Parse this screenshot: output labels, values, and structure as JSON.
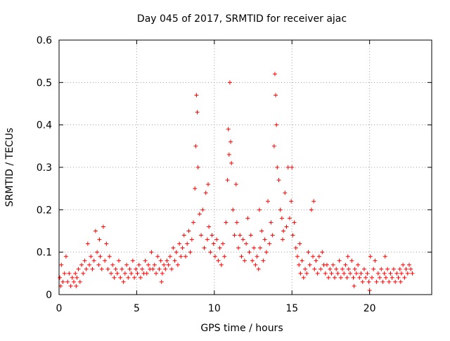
{
  "chart_data": {
    "type": "scatter",
    "title": "Day 045 of 2017, SRMTID for receiver ajac",
    "xlabel": "GPS time / hours",
    "ylabel": "SRMTID / TECUs",
    "xlim": [
      0,
      24
    ],
    "ylim": [
      0,
      0.6
    ],
    "x_ticks": [
      0,
      5,
      10,
      15,
      20
    ],
    "x_tick_labels": [
      "0",
      "5",
      "10",
      "15",
      "20"
    ],
    "y_ticks": [
      0,
      0.1,
      0.2,
      0.3,
      0.4,
      0.5,
      0.6
    ],
    "y_tick_labels": [
      "0",
      "0.1",
      "0.2",
      "0.3",
      "0.4",
      "0.5",
      "0.6"
    ],
    "grid": true,
    "marker": "+",
    "marker_color": "#ff0000",
    "series": [
      {
        "name": "SRMTID",
        "points": [
          [
            0.05,
            0.04
          ],
          [
            0.15,
            0.07
          ],
          [
            0.25,
            0.03
          ],
          [
            0.35,
            0.05
          ],
          [
            0.45,
            0.09
          ],
          [
            0.55,
            0.03
          ],
          [
            0.65,
            0.05
          ],
          [
            0.75,
            0.02
          ],
          [
            0.85,
            0.04
          ],
          [
            0.95,
            0.03
          ],
          [
            1.05,
            0.05
          ],
          [
            1.15,
            0.04
          ],
          [
            1.25,
            0.06
          ],
          [
            1.35,
            0.03
          ],
          [
            1.45,
            0.07
          ],
          [
            1.55,
            0.05
          ],
          [
            1.65,
            0.08
          ],
          [
            1.75,
            0.06
          ],
          [
            1.85,
            0.12
          ],
          [
            1.95,
            0.07
          ],
          [
            2.05,
            0.09
          ],
          [
            2.15,
            0.06
          ],
          [
            2.25,
            0.08
          ],
          [
            2.35,
            0.15
          ],
          [
            2.45,
            0.1
          ],
          [
            2.55,
            0.07
          ],
          [
            2.65,
            0.09
          ],
          [
            2.75,
            0.06
          ],
          [
            2.85,
            0.16
          ],
          [
            2.95,
            0.08
          ],
          [
            3.05,
            0.12
          ],
          [
            3.15,
            0.06
          ],
          [
            3.25,
            0.09
          ],
          [
            3.35,
            0.05
          ],
          [
            3.45,
            0.07
          ],
          [
            3.55,
            0.04
          ],
          [
            3.65,
            0.06
          ],
          [
            3.75,
            0.05
          ],
          [
            3.85,
            0.08
          ],
          [
            3.95,
            0.04
          ],
          [
            4.05,
            0.06
          ],
          [
            4.15,
            0.03
          ],
          [
            4.25,
            0.05
          ],
          [
            4.35,
            0.07
          ],
          [
            4.45,
            0.04
          ],
          [
            4.55,
            0.06
          ],
          [
            4.65,
            0.05
          ],
          [
            4.75,
            0.08
          ],
          [
            4.85,
            0.04
          ],
          [
            4.95,
            0.06
          ],
          [
            5.05,
            0.05
          ],
          [
            5.15,
            0.07
          ],
          [
            5.25,
            0.04
          ],
          [
            5.35,
            0.06
          ],
          [
            5.45,
            0.05
          ],
          [
            5.55,
            0.08
          ],
          [
            5.65,
            0.05
          ],
          [
            5.75,
            0.07
          ],
          [
            5.85,
            0.06
          ],
          [
            5.95,
            0.1
          ],
          [
            6.05,
            0.06
          ],
          [
            6.15,
            0.07
          ],
          [
            6.25,
            0.05
          ],
          [
            6.35,
            0.09
          ],
          [
            6.45,
            0.06
          ],
          [
            6.55,
            0.08
          ],
          [
            6.65,
            0.05
          ],
          [
            6.75,
            0.07
          ],
          [
            6.85,
            0.06
          ],
          [
            6.95,
            0.08
          ],
          [
            7.05,
            0.07
          ],
          [
            7.15,
            0.09
          ],
          [
            7.25,
            0.06
          ],
          [
            7.35,
            0.11
          ],
          [
            7.45,
            0.08
          ],
          [
            7.55,
            0.1
          ],
          [
            7.65,
            0.07
          ],
          [
            7.75,
            0.12
          ],
          [
            7.85,
            0.09
          ],
          [
            7.95,
            0.11
          ],
          [
            8.05,
            0.14
          ],
          [
            8.15,
            0.09
          ],
          [
            8.25,
            0.12
          ],
          [
            8.35,
            0.15
          ],
          [
            8.45,
            0.1
          ],
          [
            8.55,
            0.13
          ],
          [
            8.65,
            0.17
          ],
          [
            8.75,
            0.25
          ],
          [
            8.8,
            0.35
          ],
          [
            8.85,
            0.47
          ],
          [
            8.9,
            0.43
          ],
          [
            8.95,
            0.3
          ],
          [
            9.05,
            0.19
          ],
          [
            9.15,
            0.14
          ],
          [
            9.25,
            0.2
          ],
          [
            9.35,
            0.11
          ],
          [
            9.45,
            0.24
          ],
          [
            9.55,
            0.13
          ],
          [
            9.65,
            0.16
          ],
          [
            9.75,
            0.1
          ],
          [
            9.85,
            0.14
          ],
          [
            9.95,
            0.12
          ],
          [
            10.05,
            0.09
          ],
          [
            10.15,
            0.13
          ],
          [
            10.25,
            0.08
          ],
          [
            10.35,
            0.11
          ],
          [
            10.45,
            0.07
          ],
          [
            10.55,
            0.12
          ],
          [
            10.65,
            0.09
          ],
          [
            10.75,
            0.17
          ],
          [
            10.85,
            0.27
          ],
          [
            10.9,
            0.39
          ],
          [
            10.95,
            0.33
          ],
          [
            11.0,
            0.5
          ],
          [
            11.05,
            0.36
          ],
          [
            11.1,
            0.31
          ],
          [
            11.2,
            0.2
          ],
          [
            11.3,
            0.14
          ],
          [
            11.45,
            0.17
          ],
          [
            11.55,
            0.11
          ],
          [
            11.65,
            0.14
          ],
          [
            11.75,
            0.09
          ],
          [
            11.85,
            0.13
          ],
          [
            11.95,
            0.08
          ],
          [
            12.05,
            0.12
          ],
          [
            12.15,
            0.18
          ],
          [
            12.25,
            0.1
          ],
          [
            12.35,
            0.14
          ],
          [
            12.45,
            0.08
          ],
          [
            12.55,
            0.11
          ],
          [
            12.65,
            0.07
          ],
          [
            12.75,
            0.09
          ],
          [
            12.85,
            0.06
          ],
          [
            12.95,
            0.11
          ],
          [
            13.05,
            0.15
          ],
          [
            13.15,
            0.08
          ],
          [
            13.25,
            0.13
          ],
          [
            13.35,
            0.1
          ],
          [
            13.45,
            0.22
          ],
          [
            13.55,
            0.12
          ],
          [
            13.65,
            0.17
          ],
          [
            13.75,
            0.14
          ],
          [
            13.85,
            0.35
          ],
          [
            13.9,
            0.52
          ],
          [
            13.95,
            0.47
          ],
          [
            14.0,
            0.4
          ],
          [
            14.05,
            0.3
          ],
          [
            14.15,
            0.27
          ],
          [
            14.25,
            0.2
          ],
          [
            14.35,
            0.18
          ],
          [
            14.45,
            0.15
          ],
          [
            14.55,
            0.24
          ],
          [
            14.65,
            0.16
          ],
          [
            14.75,
            0.3
          ],
          [
            14.85,
            0.18
          ],
          [
            14.95,
            0.22
          ],
          [
            15.05,
            0.14
          ],
          [
            15.15,
            0.17
          ],
          [
            15.25,
            0.11
          ],
          [
            15.35,
            0.09
          ],
          [
            15.45,
            0.07
          ],
          [
            15.55,
            0.05
          ],
          [
            15.65,
            0.08
          ],
          [
            15.75,
            0.04
          ],
          [
            15.85,
            0.06
          ],
          [
            15.95,
            0.05
          ],
          [
            16.05,
            0.1
          ],
          [
            16.15,
            0.07
          ],
          [
            16.25,
            0.2
          ],
          [
            16.35,
            0.09
          ],
          [
            16.45,
            0.06
          ],
          [
            16.55,
            0.08
          ],
          [
            16.65,
            0.05
          ],
          [
            16.75,
            0.09
          ],
          [
            16.85,
            0.06
          ],
          [
            16.95,
            0.1
          ],
          [
            17.05,
            0.07
          ],
          [
            17.15,
            0.05
          ],
          [
            17.25,
            0.07
          ],
          [
            17.35,
            0.04
          ],
          [
            17.45,
            0.06
          ],
          [
            17.55,
            0.05
          ],
          [
            17.65,
            0.07
          ],
          [
            17.75,
            0.04
          ],
          [
            17.85,
            0.06
          ],
          [
            17.95,
            0.05
          ],
          [
            18.05,
            0.08
          ],
          [
            18.15,
            0.04
          ],
          [
            18.25,
            0.06
          ],
          [
            18.35,
            0.05
          ],
          [
            18.45,
            0.07
          ],
          [
            18.55,
            0.04
          ],
          [
            18.65,
            0.06
          ],
          [
            18.75,
            0.05
          ],
          [
            18.85,
            0.08
          ],
          [
            18.95,
            0.04
          ],
          [
            19.05,
            0.06
          ],
          [
            19.15,
            0.05
          ],
          [
            19.25,
            0.07
          ],
          [
            19.35,
            0.04
          ],
          [
            19.45,
            0.05
          ],
          [
            19.55,
            0.03
          ],
          [
            19.65,
            0.06
          ],
          [
            19.75,
            0.04
          ],
          [
            19.85,
            0.05
          ],
          [
            19.95,
            0.03
          ],
          [
            20.05,
            0.09
          ],
          [
            20.15,
            0.04
          ],
          [
            20.25,
            0.06
          ],
          [
            20.35,
            0.08
          ],
          [
            20.45,
            0.03
          ],
          [
            20.55,
            0.05
          ],
          [
            20.65,
            0.04
          ],
          [
            20.75,
            0.06
          ],
          [
            20.85,
            0.03
          ],
          [
            20.95,
            0.05
          ],
          [
            21.05,
            0.04
          ],
          [
            21.15,
            0.06
          ],
          [
            21.25,
            0.03
          ],
          [
            21.35,
            0.05
          ],
          [
            21.45,
            0.04
          ],
          [
            21.55,
            0.06
          ],
          [
            21.65,
            0.03
          ],
          [
            21.75,
            0.05
          ],
          [
            21.85,
            0.04
          ],
          [
            21.95,
            0.06
          ],
          [
            22.05,
            0.05
          ],
          [
            22.15,
            0.07
          ],
          [
            22.25,
            0.04
          ],
          [
            22.35,
            0.06
          ],
          [
            22.45,
            0.05
          ],
          [
            22.55,
            0.07
          ],
          [
            22.65,
            0.06
          ],
          [
            22.75,
            0.05
          ],
          [
            0.1,
            0.02
          ],
          [
            1.1,
            0.02
          ],
          [
            2.6,
            0.13
          ],
          [
            6.6,
            0.03
          ],
          [
            9.6,
            0.26
          ],
          [
            11.4,
            0.26
          ],
          [
            12.9,
            0.2
          ],
          [
            14.4,
            0.13
          ],
          [
            15.0,
            0.3
          ],
          [
            15.5,
            0.12
          ],
          [
            16.4,
            0.22
          ],
          [
            18.6,
            0.09
          ],
          [
            19.0,
            0.02
          ],
          [
            20.0,
            0.01
          ],
          [
            21.0,
            0.09
          ],
          [
            22.0,
            0.03
          ]
        ]
      }
    ]
  }
}
